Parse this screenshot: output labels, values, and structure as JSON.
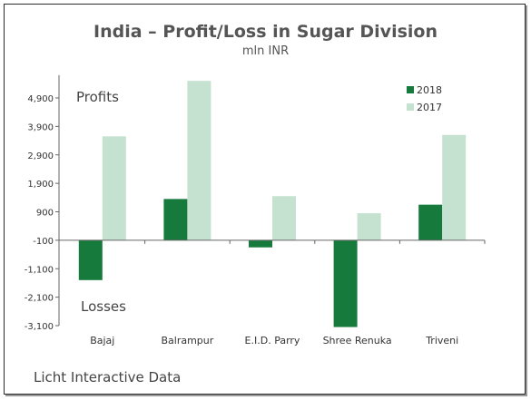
{
  "chart_data": {
    "type": "bar",
    "title": "India – Profit/Loss in Sugar Division",
    "subtitle": "mln INR",
    "categories": [
      "Bajaj",
      "Balrampur",
      "E.I.D. Parry",
      "Shree Renuka",
      "Triveni"
    ],
    "series": [
      {
        "name": "2018",
        "color": "#167a3c",
        "values": [
          -1500,
          1350,
          -350,
          -3150,
          1150
        ]
      },
      {
        "name": "2017",
        "color": "#c5e2d1",
        "values": [
          3550,
          5500,
          1450,
          850,
          3600
        ]
      }
    ],
    "yticks": [
      "4,900",
      "3,900",
      "2,900",
      "1,900",
      "900",
      "-100",
      "-1,100",
      "-2,100",
      "-3,100"
    ],
    "ylim": [
      -3100,
      5700
    ],
    "annotations": {
      "profits": "Profits",
      "losses": "Losses"
    },
    "legend_position": "top-right",
    "grid": false
  },
  "source": "Licht Interactive Data"
}
